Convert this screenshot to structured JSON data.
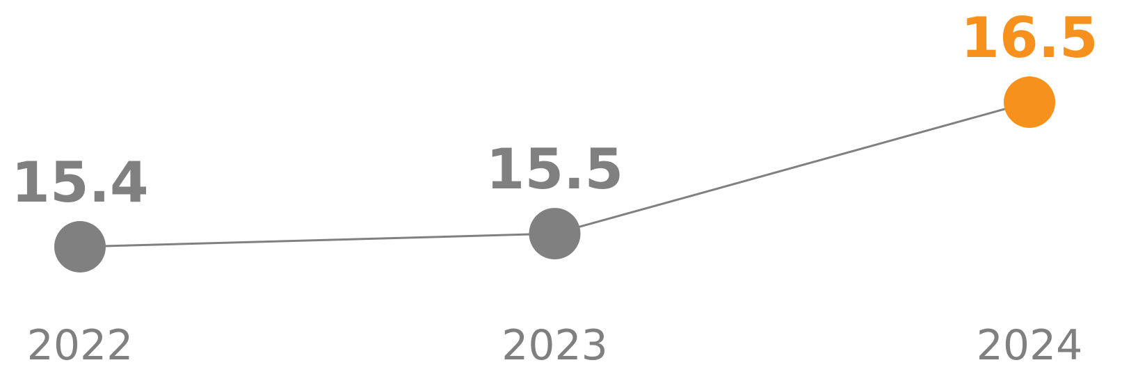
{
  "chart_data": {
    "type": "line",
    "categories": [
      "2022",
      "2023",
      "2024"
    ],
    "values": [
      15.4,
      15.5,
      16.5
    ],
    "value_labels": [
      "15.4",
      "15.5",
      "16.5"
    ],
    "ylim": [
      15.3,
      16.6
    ],
    "grid": false,
    "colors": {
      "default": "#808080",
      "highlight": "#F7911E",
      "line": "#808080",
      "year_text": "#808080"
    },
    "highlight_index": 2
  }
}
